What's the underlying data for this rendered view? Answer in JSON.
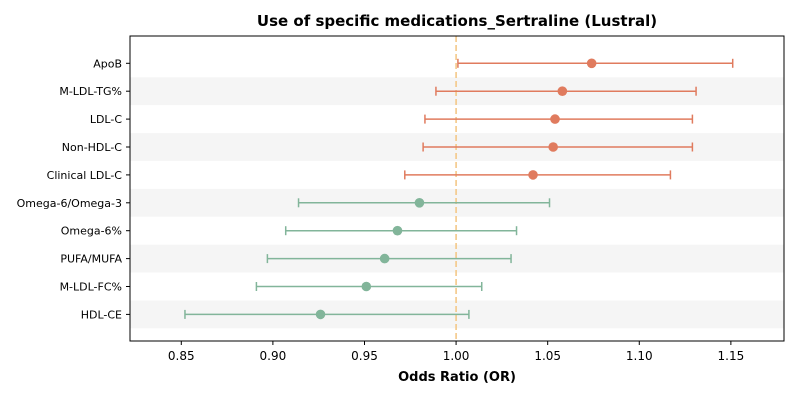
{
  "chart_data": {
    "type": "forest",
    "title": "Use of specific medications_Sertraline (Lustral)",
    "xlabel": "Odds Ratio (OR)",
    "xlim": [
      0.822,
      1.179
    ],
    "xticks": [
      "0.85",
      "0.90",
      "0.95",
      "1.00",
      "1.05",
      "1.10",
      "1.15"
    ],
    "reference_line": 1.0,
    "colors": {
      "positive": "#e07b5e",
      "negative": "#82b59a",
      "reference": "#f3c580",
      "band": "#f5f5f5"
    },
    "points": [
      {
        "label": "ApoB",
        "or": 1.074,
        "lo": 1.001,
        "hi": 1.151
      },
      {
        "label": "M-LDL-TG%",
        "or": 1.058,
        "lo": 0.989,
        "hi": 1.131
      },
      {
        "label": "LDL-C",
        "or": 1.054,
        "lo": 0.983,
        "hi": 1.129
      },
      {
        "label": "Non-HDL-C",
        "or": 1.053,
        "lo": 0.982,
        "hi": 1.129
      },
      {
        "label": "Clinical LDL-C",
        "or": 1.042,
        "lo": 0.972,
        "hi": 1.117
      },
      {
        "label": "Omega-6/Omega-3",
        "or": 0.98,
        "lo": 0.914,
        "hi": 1.051
      },
      {
        "label": "Omega-6%",
        "or": 0.968,
        "lo": 0.907,
        "hi": 1.033
      },
      {
        "label": "PUFA/MUFA",
        "or": 0.961,
        "lo": 0.897,
        "hi": 1.03
      },
      {
        "label": "M-LDL-FC%",
        "or": 0.951,
        "lo": 0.891,
        "hi": 1.014
      },
      {
        "label": "HDL-CE",
        "or": 0.926,
        "lo": 0.852,
        "hi": 1.007
      }
    ]
  }
}
